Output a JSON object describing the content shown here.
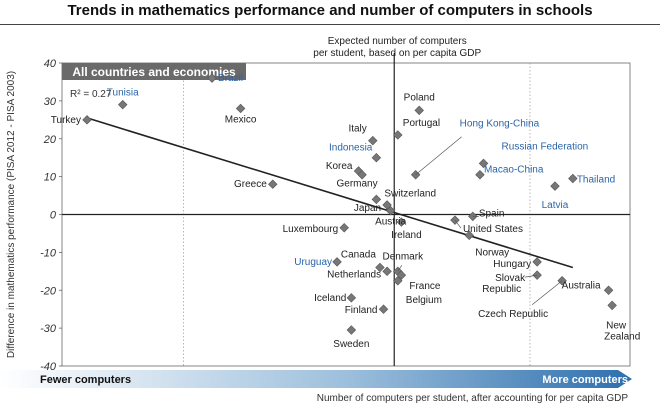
{
  "chart_data": {
    "type": "scatter",
    "title": "Trends in mathematics performance and number of computers in schools",
    "panel_label": "All countries and economies",
    "r_squared_label": "R² = 0.27",
    "ylabel": "Difference in mathematics performance (PISA 2012 - PISA 2003)",
    "xlabel": "Number of computers per student, after accounting for per capita GDP",
    "fewer_label": "Fewer computers",
    "more_label": "More computers",
    "expected_label_line1": "Expected number of computers",
    "expected_label_line2": "per student, based on per capita GDP",
    "ylim": [
      -40,
      40
    ],
    "yticks": [
      "40",
      "30",
      "20",
      "10",
      "0",
      "-10",
      "-20",
      "-30",
      "-40"
    ],
    "xlim": [
      -0.9,
      0.55
    ],
    "expected_x": 0,
    "trend_line": {
      "x": [
        -0.86,
        0.5
      ],
      "y": [
        25.5,
        -14
      ]
    },
    "colors": {
      "black": "#222222",
      "blue": "#2a64a8",
      "marker": "#777777"
    },
    "points": [
      {
        "name": "Turkey",
        "x": -0.86,
        "y": 25,
        "color": "black"
      },
      {
        "name": "Tunisia",
        "x": -0.76,
        "y": 29,
        "color": "blue"
      },
      {
        "name": "Brazil",
        "x": -0.51,
        "y": 36,
        "color": "blue"
      },
      {
        "name": "Mexico",
        "x": -0.43,
        "y": 28,
        "color": "black"
      },
      {
        "name": "Greece",
        "x": -0.34,
        "y": 8,
        "color": "black"
      },
      {
        "name": "Luxembourg",
        "x": -0.14,
        "y": -3.5,
        "color": "black"
      },
      {
        "name": "Uruguay",
        "x": -0.16,
        "y": -12.5,
        "color": "blue"
      },
      {
        "name": "Iceland",
        "x": -0.12,
        "y": -22,
        "color": "black"
      },
      {
        "name": "Sweden",
        "x": -0.12,
        "y": -30.5,
        "color": "black"
      },
      {
        "name": "Italy",
        "x": -0.06,
        "y": 19.5,
        "color": "black"
      },
      {
        "name": "Indonesia",
        "x": -0.05,
        "y": 15,
        "color": "blue"
      },
      {
        "name": "Korea",
        "x": -0.1,
        "y": 11.5,
        "color": "black"
      },
      {
        "name": "Germany",
        "x": -0.09,
        "y": 10.5,
        "color": "black"
      },
      {
        "name": "Switzerland",
        "x": -0.05,
        "y": 4,
        "color": "black"
      },
      {
        "name": "Japan",
        "x": -0.02,
        "y": 2.5,
        "color": "black"
      },
      {
        "name": "Austria",
        "x": -0.01,
        "y": 1,
        "color": "black"
      },
      {
        "name": "Canada",
        "x": -0.04,
        "y": -14,
        "color": "black"
      },
      {
        "name": "Netherlands",
        "x": -0.02,
        "y": -15,
        "color": "black"
      },
      {
        "name": "Finland",
        "x": -0.03,
        "y": -25,
        "color": "black"
      },
      {
        "name": "Poland",
        "x": 0.07,
        "y": 27.5,
        "color": "black"
      },
      {
        "name": "Portugal",
        "x": 0.01,
        "y": 21,
        "color": "black"
      },
      {
        "name": "Ireland",
        "x": 0.02,
        "y": -2,
        "color": "black"
      },
      {
        "name": "Denmark",
        "x": 0.01,
        "y": -15,
        "color": "black"
      },
      {
        "name": "France",
        "x": 0.02,
        "y": -16,
        "color": "black"
      },
      {
        "name": "Belgium",
        "x": 0.01,
        "y": -17.5,
        "color": "black"
      },
      {
        "name": "Hong Kong-China",
        "x": 0.06,
        "y": 10.5,
        "color": "blue"
      },
      {
        "name": "Russian Federation",
        "x": 0.25,
        "y": 13.5,
        "color": "blue"
      },
      {
        "name": "Macao-China",
        "x": 0.24,
        "y": 10.5,
        "color": "blue"
      },
      {
        "name": "Spain",
        "x": 0.22,
        "y": -0.5,
        "color": "black"
      },
      {
        "name": "United States",
        "x": 0.17,
        "y": -1.5,
        "color": "black"
      },
      {
        "name": "Norway",
        "x": 0.21,
        "y": -5.5,
        "color": "black"
      },
      {
        "name": "Thailand",
        "x": 0.5,
        "y": 9.5,
        "color": "blue"
      },
      {
        "name": "Latvia",
        "x": 0.45,
        "y": 7.5,
        "color": "blue"
      },
      {
        "name": "Hungary",
        "x": 0.4,
        "y": -12.5,
        "color": "black"
      },
      {
        "name": "Slovak Republic",
        "x": 0.4,
        "y": -16,
        "color": "black"
      },
      {
        "name": "Czech Republic",
        "x": 0.47,
        "y": -17.5,
        "color": "black"
      },
      {
        "name": "Australia",
        "x": 0.6,
        "y": -20,
        "color": "black"
      },
      {
        "name": "New Zealand",
        "x": 0.61,
        "y": -24,
        "color": "black"
      }
    ],
    "grid": false,
    "legend": "none"
  }
}
